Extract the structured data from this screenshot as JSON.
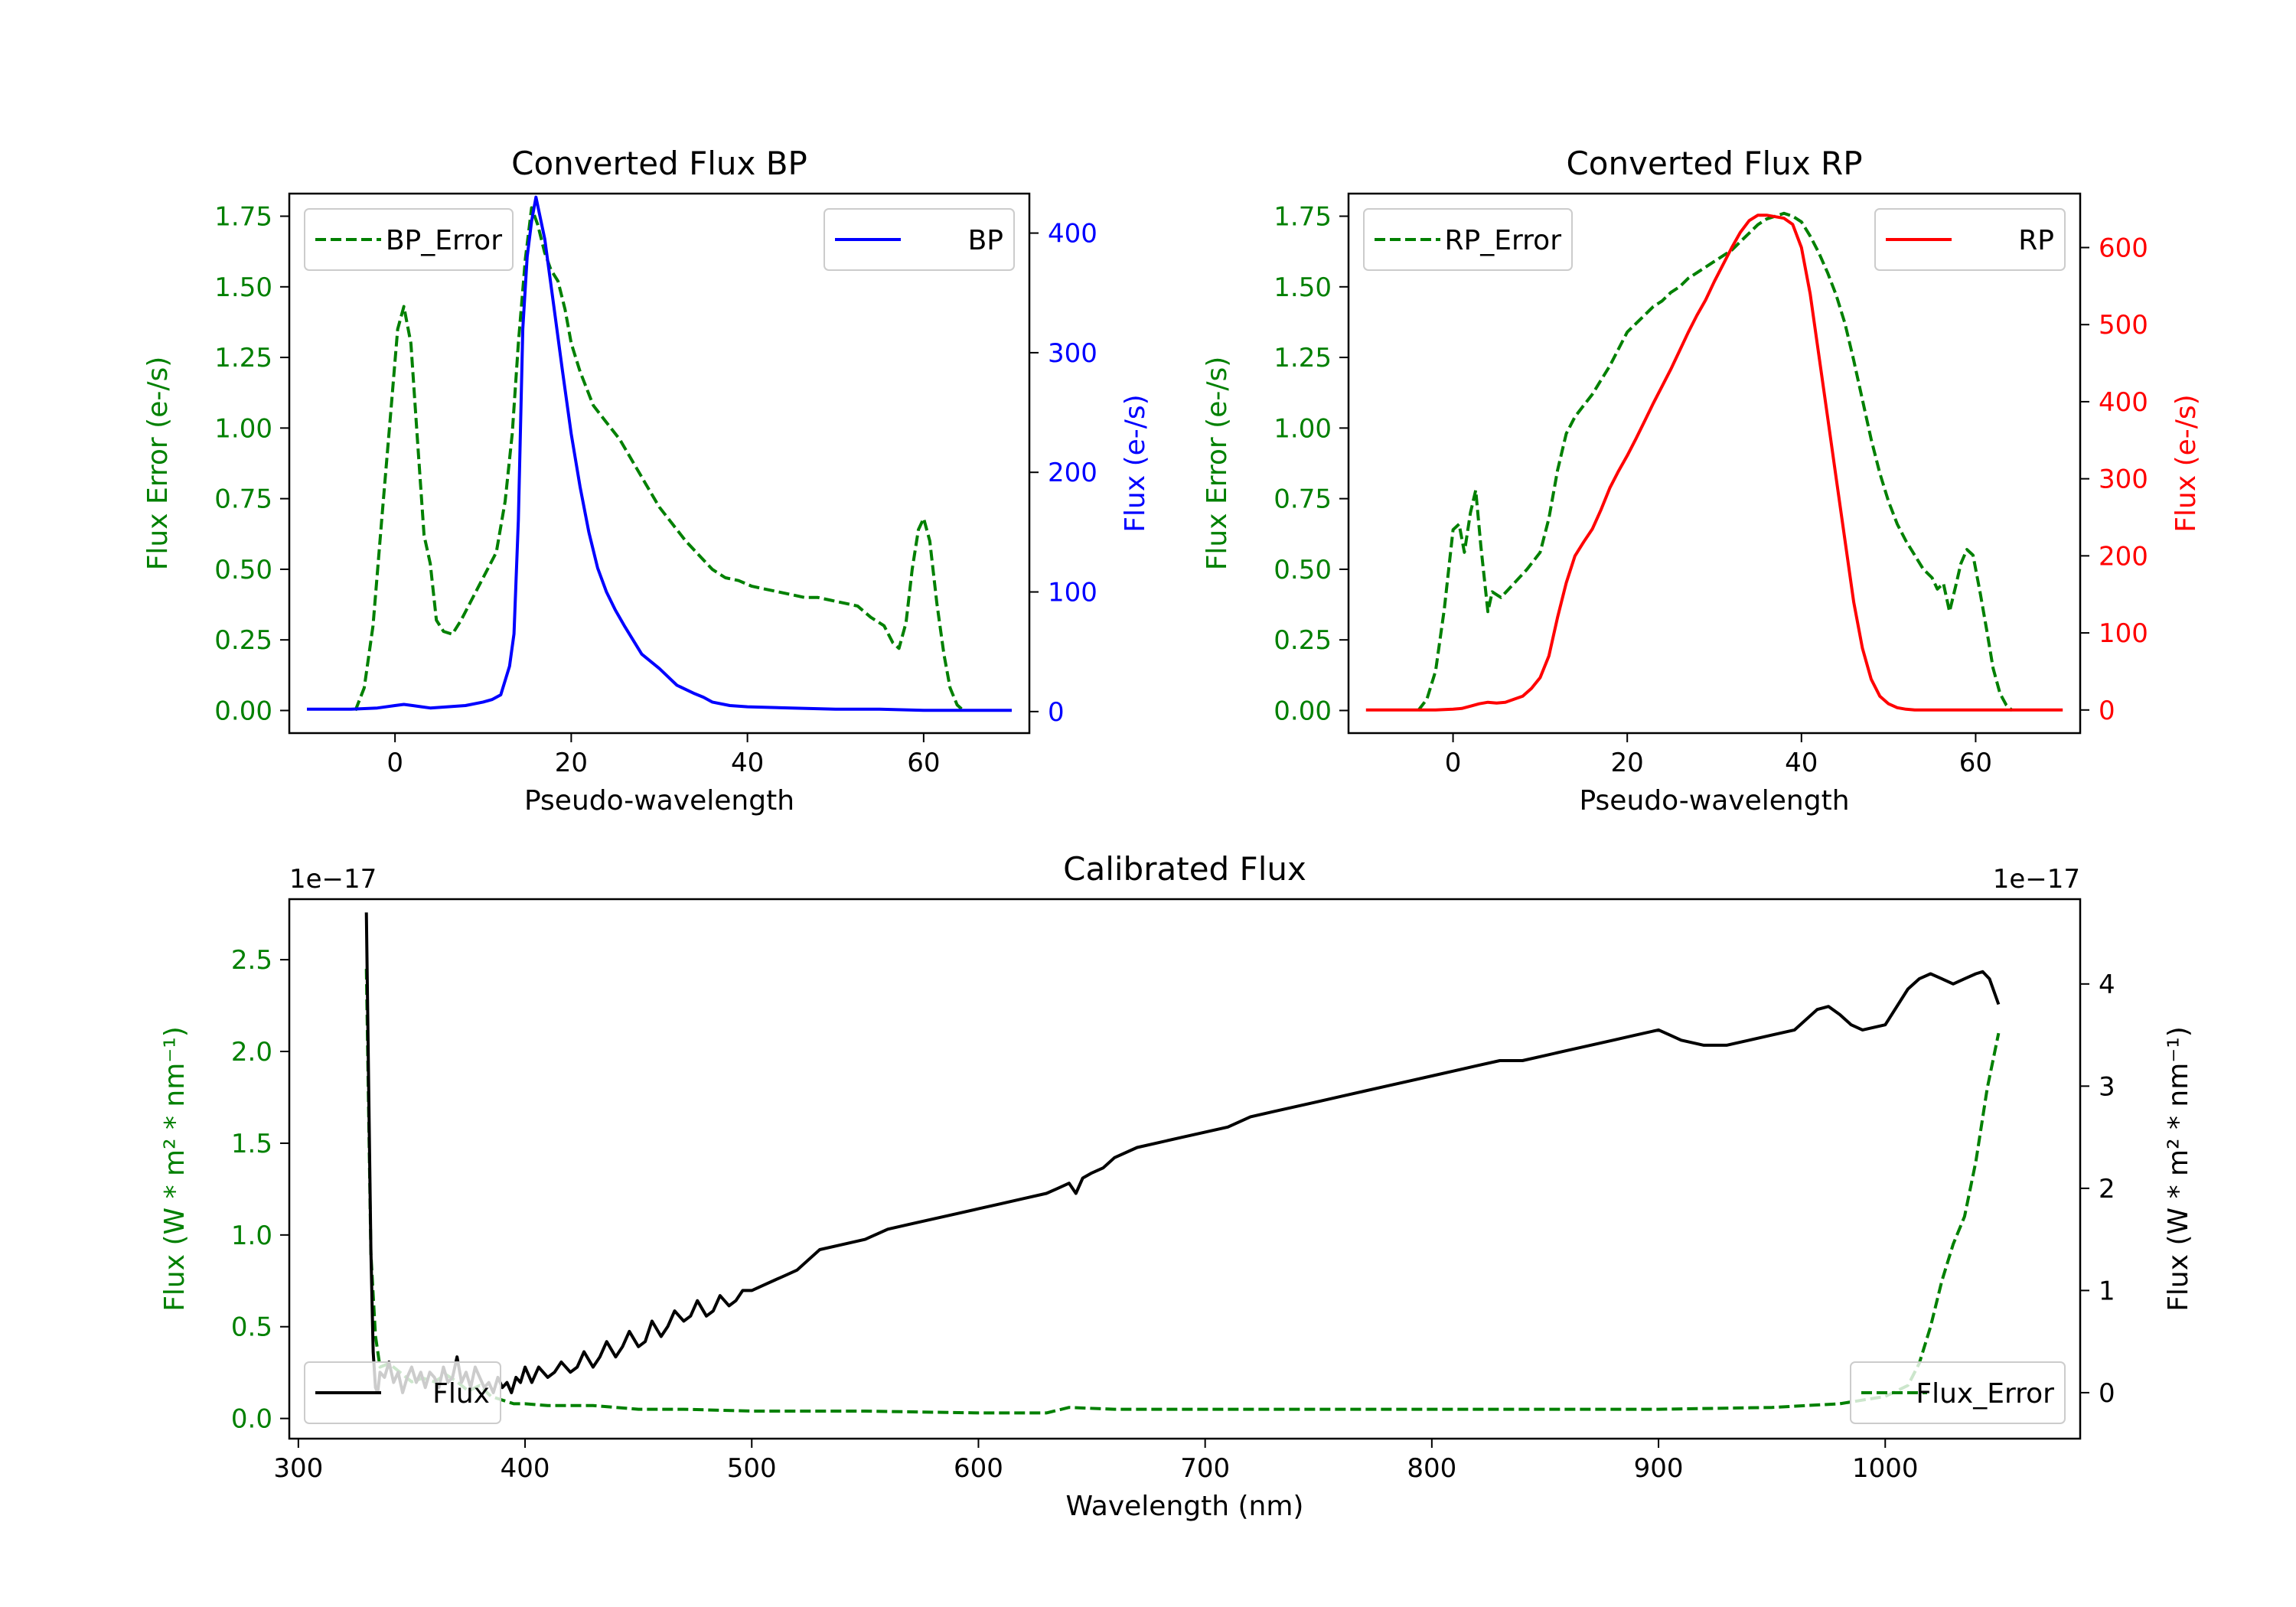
{
  "chart_data": [
    {
      "type": "line",
      "title": "Converted Flux BP",
      "xlabel": "Pseudo-wavelength",
      "ylabel_left": "Flux Error (e-/s)",
      "ylabel_right": "Flux (e-/s)",
      "xlim": [
        -12,
        72
      ],
      "ylim_left": [
        -0.08,
        1.83
      ],
      "ylim_right": [
        -18,
        433
      ],
      "xticks": [
        0,
        20,
        40,
        60
      ],
      "yticks_left": [
        0.0,
        0.25,
        0.5,
        0.75,
        1.0,
        1.25,
        1.5,
        1.75
      ],
      "ytick_labels_left": [
        "0.00",
        "0.25",
        "0.50",
        "0.75",
        "1.00",
        "1.25",
        "1.50",
        "1.75"
      ],
      "yticks_right": [
        0,
        100,
        200,
        300,
        400
      ],
      "colors": {
        "left": "#008000",
        "right": "#0000ff"
      },
      "series": [
        {
          "name": "BP_Error",
          "axis": "left",
          "style": "dashed",
          "color": "#008000",
          "x": [
            -4.5,
            -3.5,
            -2.5,
            -1.5,
            -0.5,
            0.3,
            1,
            1.8,
            2.5,
            3.3,
            4,
            4.7,
            5.5,
            6.5,
            7.5,
            8.5,
            9.5,
            10.5,
            11.5,
            12.5,
            13.3,
            14,
            14.8,
            15.5,
            16.2,
            17,
            17.7,
            18.5,
            19.3,
            20,
            21,
            22.5,
            24,
            25.5,
            27,
            28.5,
            30,
            31.5,
            33,
            34.5,
            36,
            37.5,
            39,
            40.5,
            42,
            43.5,
            45,
            46.5,
            48,
            49.5,
            51,
            52.5,
            54,
            55.5,
            56.5,
            57.2,
            58,
            58.7,
            59.4,
            60,
            60.7,
            61.5,
            62.3,
            63,
            63.8,
            64.5
          ],
          "values": [
            0.0,
            0.08,
            0.3,
            0.68,
            1.05,
            1.35,
            1.43,
            1.3,
            0.98,
            0.62,
            0.52,
            0.32,
            0.28,
            0.27,
            0.32,
            0.38,
            0.44,
            0.5,
            0.56,
            0.74,
            0.98,
            1.3,
            1.6,
            1.78,
            1.72,
            1.62,
            1.56,
            1.52,
            1.42,
            1.3,
            1.2,
            1.08,
            1.02,
            0.96,
            0.88,
            0.8,
            0.72,
            0.66,
            0.6,
            0.55,
            0.5,
            0.47,
            0.46,
            0.44,
            0.43,
            0.42,
            0.41,
            0.4,
            0.4,
            0.39,
            0.38,
            0.37,
            0.33,
            0.3,
            0.24,
            0.22,
            0.31,
            0.5,
            0.64,
            0.68,
            0.6,
            0.38,
            0.2,
            0.08,
            0.02,
            0.0
          ]
        },
        {
          "name": "BP",
          "axis": "right",
          "style": "solid",
          "color": "#0000ff",
          "x": [
            -10,
            -5,
            -2,
            0,
            1,
            2,
            3,
            4,
            6,
            8,
            10,
            11,
            12,
            13,
            13.5,
            14,
            14.5,
            15,
            15.5,
            16,
            17,
            18,
            19,
            20,
            21,
            22,
            23,
            24,
            25,
            26,
            27,
            28,
            30,
            32,
            34,
            35,
            36,
            38,
            40,
            45,
            50,
            55,
            60,
            65,
            70
          ],
          "values": [
            2,
            2,
            3,
            5,
            6,
            5,
            4,
            3,
            4,
            5,
            8,
            10,
            14,
            38,
            65,
            160,
            320,
            380,
            410,
            430,
            395,
            340,
            285,
            232,
            188,
            150,
            120,
            100,
            85,
            72,
            60,
            48,
            36,
            22,
            15,
            12,
            8,
            5,
            4,
            3,
            2,
            2,
            1,
            1,
            1
          ]
        }
      ]
    },
    {
      "type": "line",
      "title": "Converted Flux RP",
      "xlabel": "Pseudo-wavelength",
      "ylabel_left": "Flux Error (e-/s)",
      "ylabel_right": "Flux (e-/s)",
      "xlim": [
        -12,
        72
      ],
      "ylim_left": [
        -0.08,
        1.83
      ],
      "ylim_right": [
        -30,
        670
      ],
      "xticks": [
        0,
        20,
        40,
        60
      ],
      "yticks_left": [
        0.0,
        0.25,
        0.5,
        0.75,
        1.0,
        1.25,
        1.5,
        1.75
      ],
      "ytick_labels_left": [
        "0.00",
        "0.25",
        "0.50",
        "0.75",
        "1.00",
        "1.25",
        "1.50",
        "1.75"
      ],
      "yticks_right": [
        0,
        100,
        200,
        300,
        400,
        500,
        600
      ],
      "colors": {
        "left": "#008000",
        "right": "#ff0000"
      },
      "series": [
        {
          "name": "RP_Error",
          "axis": "left",
          "style": "dashed",
          "color": "#008000",
          "x": [
            -4,
            -3,
            -2,
            -1,
            0,
            0.7,
            1.3,
            2,
            2.6,
            3.2,
            4,
            4.5,
            5.5,
            7,
            8.5,
            10,
            11,
            12,
            13,
            14,
            15,
            16,
            17,
            18,
            19,
            20,
            21,
            22,
            23,
            24,
            25,
            26,
            27,
            28,
            29,
            30,
            31,
            32,
            33,
            34,
            35,
            36,
            37,
            38,
            39,
            40,
            41,
            42,
            43,
            44,
            45,
            46,
            47,
            48,
            49,
            50,
            51,
            52,
            53,
            54,
            55,
            55.6,
            56.3,
            57,
            57.7,
            58.3,
            59,
            59.7,
            60.5,
            61.3,
            62,
            62.8,
            63.5,
            64.2
          ],
          "values": [
            0.0,
            0.04,
            0.14,
            0.36,
            0.64,
            0.66,
            0.56,
            0.7,
            0.78,
            0.58,
            0.35,
            0.42,
            0.4,
            0.45,
            0.5,
            0.56,
            0.68,
            0.85,
            0.98,
            1.04,
            1.08,
            1.12,
            1.17,
            1.22,
            1.28,
            1.34,
            1.37,
            1.4,
            1.43,
            1.45,
            1.48,
            1.5,
            1.53,
            1.55,
            1.57,
            1.59,
            1.61,
            1.63,
            1.66,
            1.69,
            1.72,
            1.74,
            1.75,
            1.76,
            1.75,
            1.73,
            1.68,
            1.62,
            1.55,
            1.47,
            1.37,
            1.24,
            1.1,
            0.96,
            0.84,
            0.74,
            0.66,
            0.6,
            0.55,
            0.5,
            0.47,
            0.43,
            0.45,
            0.35,
            0.44,
            0.52,
            0.57,
            0.55,
            0.42,
            0.28,
            0.15,
            0.06,
            0.02,
            0.0
          ]
        },
        {
          "name": "RP",
          "axis": "right",
          "style": "solid",
          "color": "#ff0000",
          "x": [
            -10,
            -5,
            -2,
            0,
            1,
            2,
            3,
            4,
            5,
            6,
            7,
            8,
            9,
            10,
            11,
            12,
            13,
            14,
            15,
            16,
            17,
            18,
            19,
            20,
            21,
            22,
            23,
            24,
            25,
            26,
            27,
            28,
            29,
            30,
            31,
            32,
            33,
            34,
            35,
            36,
            37,
            38,
            39,
            40,
            41,
            42,
            43,
            44,
            45,
            46,
            47,
            48,
            49,
            50,
            51,
            52,
            53,
            54,
            55,
            56,
            58,
            60,
            62,
            65,
            70
          ],
          "values": [
            0,
            0,
            0,
            1,
            2,
            5,
            8,
            10,
            9,
            10,
            14,
            18,
            28,
            42,
            70,
            120,
            165,
            200,
            218,
            235,
            260,
            288,
            310,
            330,
            352,
            375,
            398,
            420,
            442,
            466,
            490,
            512,
            532,
            556,
            578,
            600,
            620,
            635,
            642,
            642,
            640,
            638,
            630,
            600,
            540,
            460,
            380,
            300,
            220,
            140,
            80,
            40,
            18,
            8,
            3,
            1,
            0,
            0,
            0,
            0,
            0,
            0,
            0,
            0,
            0
          ]
        }
      ]
    },
    {
      "type": "line",
      "title": "Calibrated Flux",
      "xlabel": "Wavelength (nm)",
      "ylabel_left": "Flux (W * m² * nm⁻¹)",
      "ylabel_right": "Flux (W * m² * nm⁻¹)",
      "offset_left": "1e−17",
      "offset_right": "1e−17",
      "xlim": [
        296,
        1086
      ],
      "ylim_left": [
        -0.11,
        2.83
      ],
      "ylim_right": [
        -0.45,
        4.83
      ],
      "xticks": [
        300,
        400,
        500,
        600,
        700,
        800,
        900,
        1000
      ],
      "yticks_left": [
        0.0,
        0.5,
        1.0,
        1.5,
        2.0,
        2.5
      ],
      "ytick_labels_left": [
        "0.0",
        "0.5",
        "1.0",
        "1.5",
        "2.0",
        "2.5"
      ],
      "yticks_right": [
        0,
        1,
        2,
        3,
        4
      ],
      "colors": {
        "left": "#008000",
        "right": "#000000"
      },
      "series": [
        {
          "name": "Flux_Error",
          "axis": "left",
          "style": "dashed",
          "color": "#008000",
          "x": [
            330,
            332,
            334,
            336,
            340,
            345,
            350,
            355,
            360,
            365,
            370,
            375,
            380,
            385,
            390,
            395,
            400,
            410,
            420,
            430,
            440,
            450,
            470,
            500,
            550,
            600,
            630,
            640,
            660,
            700,
            750,
            800,
            850,
            900,
            950,
            980,
            1000,
            1010,
            1015,
            1020,
            1025,
            1030,
            1035,
            1040,
            1045,
            1050
          ],
          "values": [
            2.45,
            0.9,
            0.45,
            0.28,
            0.3,
            0.25,
            0.2,
            0.22,
            0.2,
            0.24,
            0.2,
            0.15,
            0.18,
            0.12,
            0.1,
            0.08,
            0.08,
            0.07,
            0.07,
            0.07,
            0.06,
            0.05,
            0.05,
            0.04,
            0.04,
            0.03,
            0.03,
            0.06,
            0.05,
            0.05,
            0.05,
            0.05,
            0.05,
            0.05,
            0.06,
            0.08,
            0.12,
            0.18,
            0.3,
            0.5,
            0.75,
            0.95,
            1.1,
            1.4,
            1.8,
            2.1
          ]
        },
        {
          "name": "Flux",
          "axis": "right",
          "style": "solid",
          "color": "#000000",
          "x": [
            330,
            331,
            332,
            333,
            334,
            335,
            336,
            338,
            340,
            342,
            344,
            346,
            348,
            350,
            352,
            354,
            356,
            358,
            360,
            362,
            364,
            366,
            368,
            370,
            372,
            374,
            376,
            378,
            380,
            382,
            384,
            386,
            388,
            390,
            392,
            394,
            396,
            398,
            400,
            403,
            406,
            410,
            413,
            416,
            420,
            423,
            426,
            430,
            433,
            436,
            440,
            443,
            446,
            450,
            453,
            456,
            460,
            463,
            466,
            470,
            473,
            476,
            480,
            483,
            486,
            490,
            493,
            496,
            500,
            505,
            510,
            515,
            520,
            525,
            530,
            540,
            550,
            560,
            570,
            580,
            590,
            600,
            610,
            620,
            630,
            635,
            640,
            643,
            646,
            650,
            655,
            660,
            670,
            680,
            690,
            700,
            710,
            720,
            730,
            740,
            750,
            760,
            770,
            780,
            790,
            800,
            810,
            820,
            830,
            840,
            850,
            860,
            870,
            880,
            890,
            900,
            905,
            910,
            920,
            930,
            940,
            950,
            960,
            970,
            975,
            980,
            985,
            990,
            1000,
            1010,
            1015,
            1020,
            1025,
            1030,
            1035,
            1040,
            1043,
            1046,
            1050
          ],
          "values": [
            4.7,
            3.0,
            1.4,
            0.4,
            0.05,
            0.0,
            0.2,
            0.15,
            0.3,
            0.1,
            0.2,
            0.0,
            0.15,
            0.25,
            0.1,
            0.2,
            0.05,
            0.2,
            0.15,
            0.05,
            0.25,
            0.1,
            0.15,
            0.35,
            0.1,
            0.2,
            0.05,
            0.25,
            0.15,
            0.05,
            0.1,
            0.0,
            0.15,
            0.05,
            0.1,
            0.0,
            0.15,
            0.1,
            0.25,
            0.1,
            0.25,
            0.15,
            0.2,
            0.3,
            0.2,
            0.25,
            0.4,
            0.25,
            0.35,
            0.5,
            0.35,
            0.45,
            0.6,
            0.45,
            0.5,
            0.7,
            0.55,
            0.65,
            0.8,
            0.7,
            0.75,
            0.9,
            0.75,
            0.8,
            0.95,
            0.85,
            0.9,
            1.0,
            1.0,
            1.05,
            1.1,
            1.15,
            1.2,
            1.3,
            1.4,
            1.45,
            1.5,
            1.6,
            1.65,
            1.7,
            1.75,
            1.8,
            1.85,
            1.9,
            1.95,
            2.0,
            2.05,
            1.95,
            2.1,
            2.15,
            2.2,
            2.3,
            2.4,
            2.45,
            2.5,
            2.55,
            2.6,
            2.7,
            2.75,
            2.8,
            2.85,
            2.9,
            2.95,
            3.0,
            3.05,
            3.1,
            3.15,
            3.2,
            3.25,
            3.25,
            3.3,
            3.35,
            3.4,
            3.45,
            3.5,
            3.55,
            3.5,
            3.45,
            3.4,
            3.4,
            3.45,
            3.5,
            3.55,
            3.75,
            3.78,
            3.7,
            3.6,
            3.55,
            3.6,
            3.95,
            4.05,
            4.1,
            4.05,
            4.0,
            4.05,
            4.1,
            4.12,
            4.05,
            3.8
          ]
        }
      ]
    }
  ]
}
